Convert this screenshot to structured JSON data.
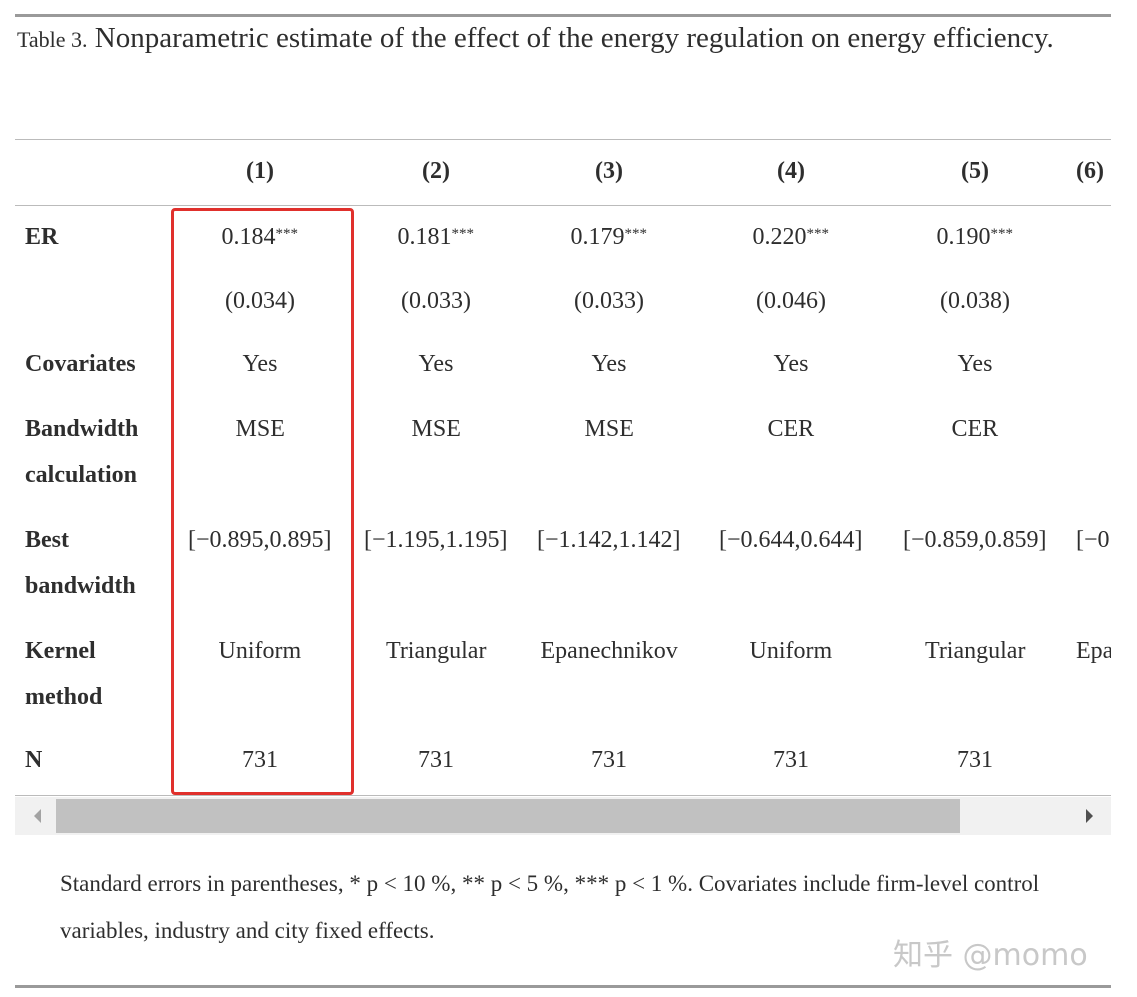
{
  "caption": {
    "label": "Table 3.",
    "text": "Nonparametric estimate of the effect of the energy regulation on energy efficiency."
  },
  "table": {
    "header": [
      null,
      "(1)",
      "(2)",
      "(3)",
      "(4)",
      "(5)",
      "(6)"
    ],
    "rows": [
      [
        "ER",
        "0.184***",
        "0.181***",
        "0.179***",
        "0.220***",
        "0.190***",
        null
      ],
      [
        null,
        "(0.034)",
        "(0.033)",
        "(0.033)",
        "(0.046)",
        "(0.038)",
        null
      ],
      [
        "Covariates",
        "Yes",
        "Yes",
        "Yes",
        "Yes",
        "Yes",
        null
      ],
      [
        "Bandwidth calculation",
        "MSE",
        "MSE",
        "MSE",
        "CER",
        "CER",
        null
      ],
      [
        "Best bandwidth",
        "[−0.895,0.895]",
        "[−1.195,1.195]",
        "[−1.142,1.142]",
        "[−0.644,0.644]",
        "[−0.859,0.859]",
        "[−0"
      ],
      [
        "Kernel method",
        "Uniform",
        "Triangular",
        "Epanechnikov",
        "Uniform",
        "Triangular",
        "Epa"
      ],
      [
        "N",
        "731",
        "731",
        "731",
        "731",
        "731",
        null
      ]
    ]
  },
  "note": "Standard errors in parentheses, * p < 10 %, ** p < 5 %, *** p < 1 %. Covariates include firm-level control variables, industry and city fixed effects.",
  "watermark": "知乎 @momo"
}
